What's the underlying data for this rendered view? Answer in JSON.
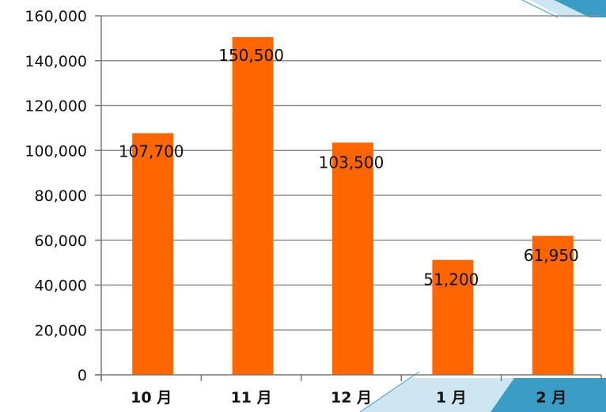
{
  "colors": {
    "bar": "#ff6600",
    "gridline": "#8c8c8c",
    "axis": "#777777",
    "deco_dark": "#3b9cc6",
    "deco_light": "#cde6f1"
  },
  "chart_data": {
    "type": "bar",
    "categories": [
      "10 月",
      "11 月",
      "12 月",
      "1 月",
      "2 月"
    ],
    "values": [
      107700,
      150500,
      103500,
      51200,
      61950
    ],
    "data_labels": [
      "107,700",
      "150,500",
      "103,500",
      "51,200",
      "61,950"
    ],
    "yticks": [
      0,
      20000,
      40000,
      60000,
      80000,
      100000,
      120000,
      140000,
      160000
    ],
    "ytick_labels": [
      "0",
      "20,000",
      "40,000",
      "60,000",
      "80,000",
      "100,000",
      "120,000",
      "140,000",
      "160,000"
    ],
    "ylim": [
      0,
      160000
    ],
    "title": "",
    "xlabel": "",
    "ylabel": "",
    "grid": true,
    "legend": "none"
  }
}
